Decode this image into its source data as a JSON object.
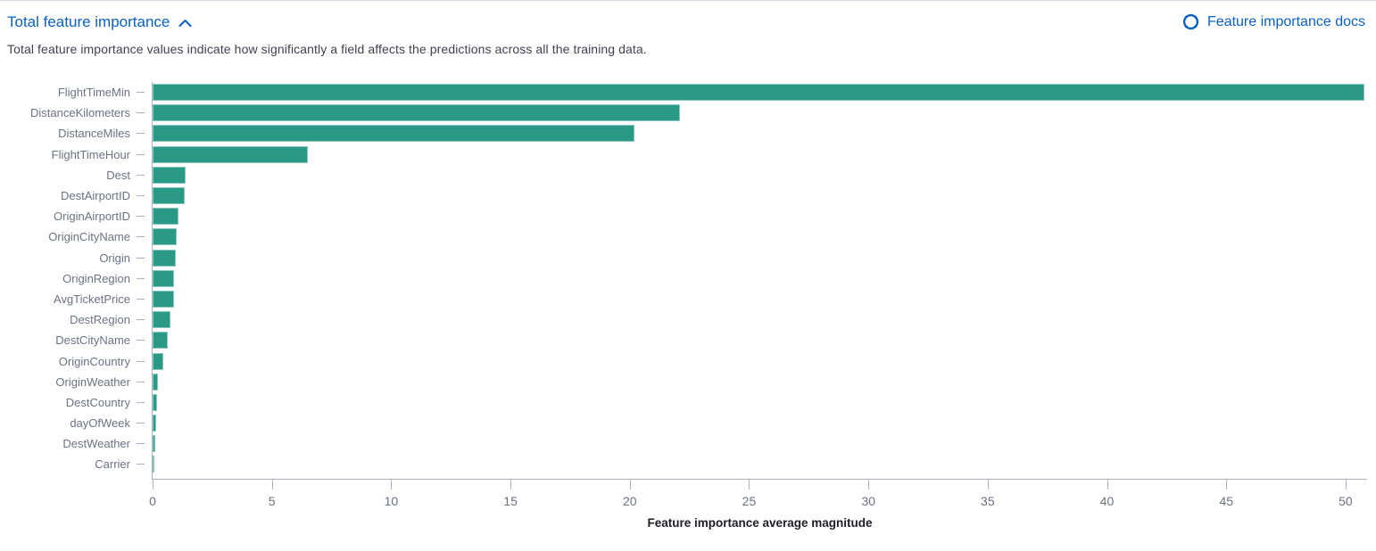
{
  "header": {
    "title": "Total feature importance",
    "collapse_icon": "chevron-up-icon",
    "docs_link": "Feature importance docs",
    "docs_icon": "help-life-ring-icon"
  },
  "description": "Total feature importance values indicate how significantly a field affects the predictions across all the training data.",
  "colors": {
    "link_blue": "#0b61c1",
    "bar_teal": "#2a9a87",
    "axis_line": "#a9b2c3",
    "axis_label_text": "#6a7384",
    "body_text": "#3f4350",
    "axis_title_text": "#1d1e24"
  },
  "chart_data": {
    "type": "bar",
    "orientation": "horizontal",
    "title": "",
    "xlabel": "Feature importance average magnitude",
    "ylabel": "",
    "xlim": [
      0,
      50.9
    ],
    "x_ticks": [
      0,
      5,
      10,
      15,
      20,
      25,
      30,
      35,
      40,
      45,
      50
    ],
    "grid": false,
    "legend": false,
    "categories": [
      "FlightTimeMin",
      "DistanceKilometers",
      "DistanceMiles",
      "FlightTimeHour",
      "Dest",
      "DestAirportID",
      "OriginAirportID",
      "OriginCityName",
      "Origin",
      "OriginRegion",
      "AvgTicketPrice",
      "DestRegion",
      "DestCityName",
      "OriginCountry",
      "OriginWeather",
      "DestCountry",
      "dayOfWeek",
      "DestWeather",
      "Carrier"
    ],
    "values": [
      50.8,
      22.1,
      20.2,
      6.5,
      1.4,
      1.35,
      1.1,
      1.0,
      0.98,
      0.91,
      0.89,
      0.76,
      0.64,
      0.46,
      0.24,
      0.19,
      0.15,
      0.13,
      0.06
    ]
  }
}
